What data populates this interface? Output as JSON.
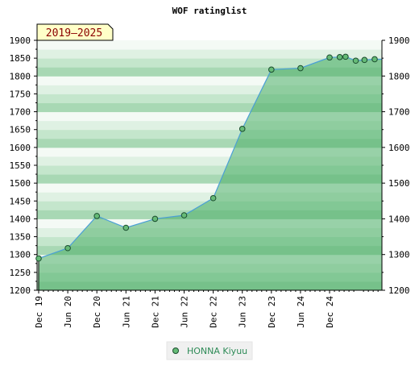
{
  "chart_data": {
    "type": "area",
    "title": "WOF ratinglist",
    "period_label": "2019–2025",
    "xlabel": "",
    "ylabel": "",
    "x_tick_labels": [
      "Dec 19",
      "Jun 20",
      "Dec 20",
      "Jun 21",
      "Dec 21",
      "Jun 22",
      "Dec 22",
      "Jun 23",
      "Dec 23",
      "Jun 24",
      "Dec 24"
    ],
    "y_ticks": [
      1200,
      1250,
      1300,
      1350,
      1400,
      1450,
      1500,
      1550,
      1600,
      1650,
      1700,
      1750,
      1800,
      1850,
      1900
    ],
    "right_y_ticks": [
      1200,
      1300,
      1400,
      1500,
      1600,
      1700,
      1800,
      1900
    ],
    "ylim": [
      1200,
      1900
    ],
    "xlim": [
      0,
      11.8
    ],
    "grid": "horizontal bands",
    "legend_placement": "bottom-center",
    "series": [
      {
        "name": "HONNA Kiyuu",
        "color": "#2e8b57",
        "marker_color": "#66bb77",
        "line_color": "#4a9fd6",
        "x": [
          0,
          1,
          2,
          3,
          4,
          5,
          6,
          7,
          8,
          9,
          10,
          10.35,
          10.55,
          10.9,
          11.2,
          11.55
        ],
        "values": [
          1289,
          1318,
          1408,
          1375,
          1400,
          1410,
          1458,
          1652,
          1818,
          1822,
          1852,
          1853,
          1854,
          1843,
          1845,
          1847
        ]
      }
    ]
  }
}
